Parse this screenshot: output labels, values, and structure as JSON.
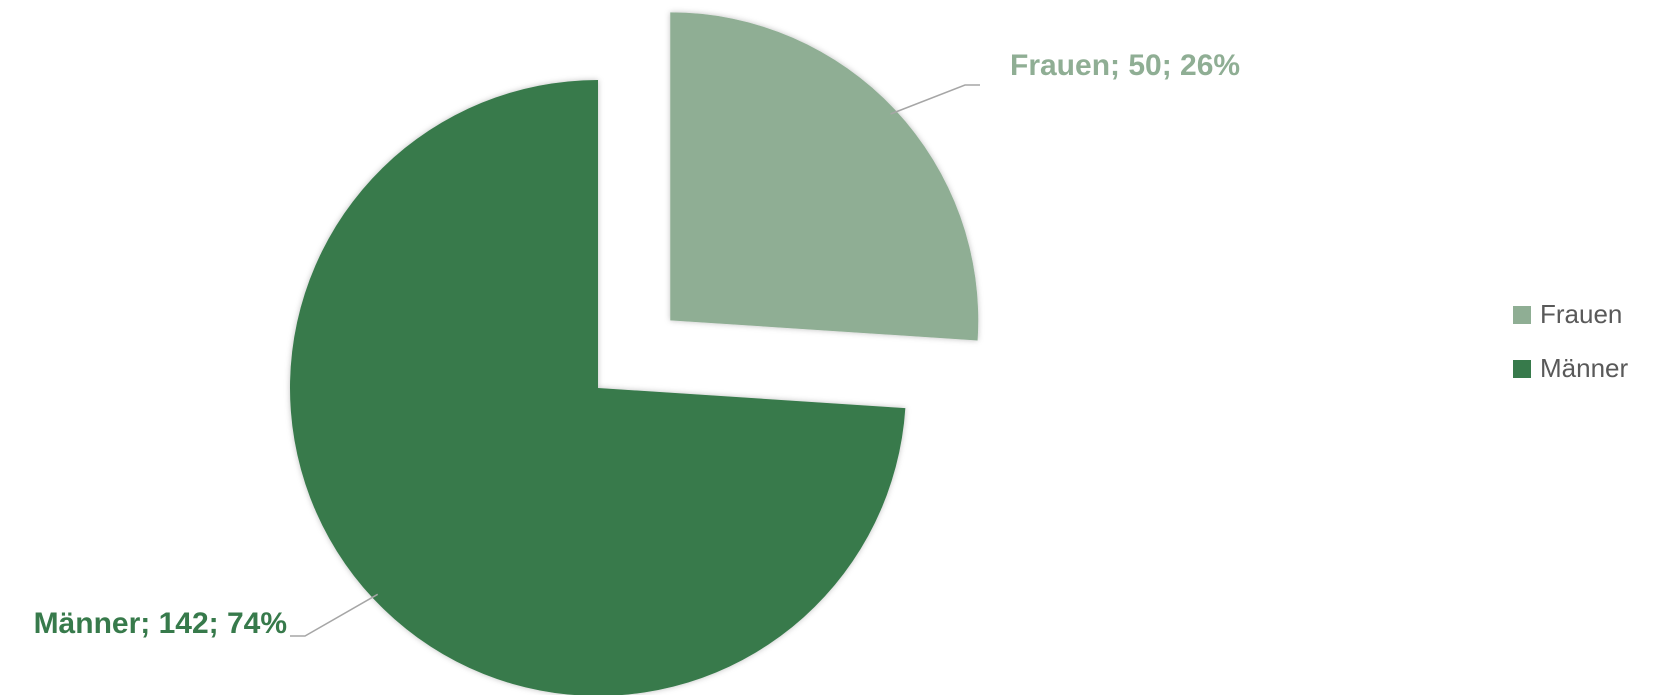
{
  "chart_data": {
    "type": "pie",
    "categories": [
      "Frauen",
      "Männer"
    ],
    "values": [
      50,
      142
    ],
    "value_labels": [
      "Frauen; 50; 26%",
      "Männer; 142; 74%"
    ],
    "colors": [
      "#8fae94",
      "#377a4b"
    ],
    "explode": [
      true,
      false
    ],
    "legend": "right"
  }
}
